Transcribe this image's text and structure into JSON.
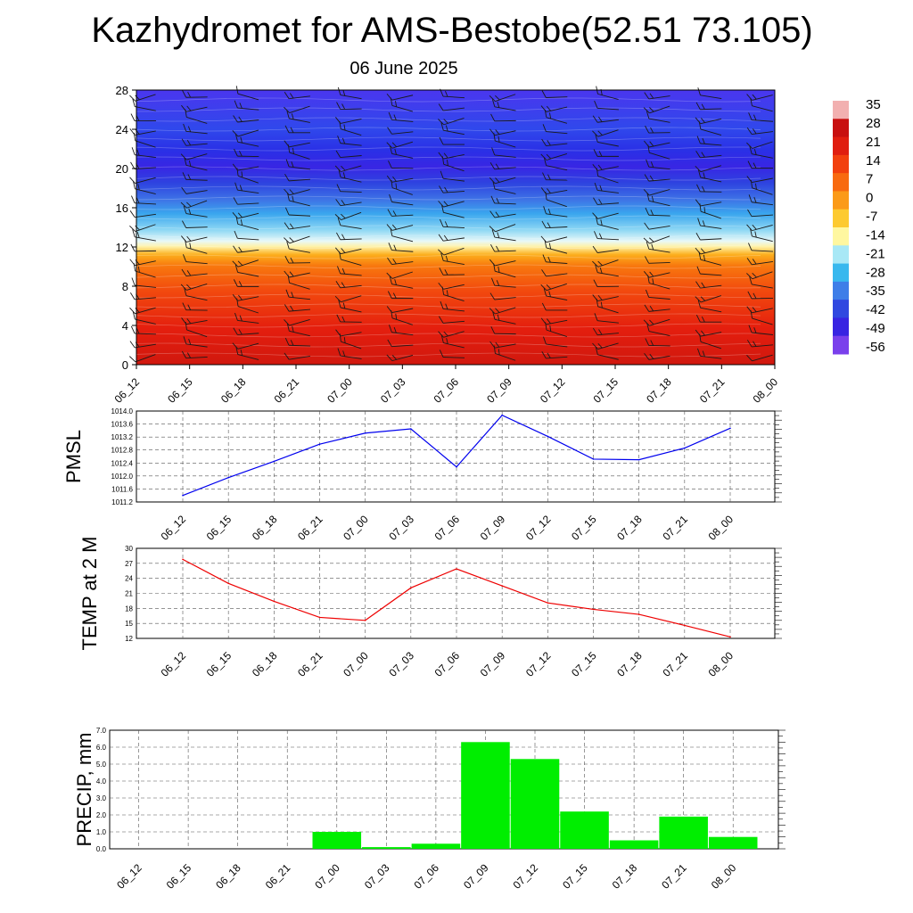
{
  "title": "Kazhydromet for AMS-Bestobe(52.51 73.105)",
  "subtitle": "06 June 2025",
  "chart_data": [
    {
      "type": "heatmap",
      "name": "temperature-cross-section",
      "x": [
        "06_12",
        "06_15",
        "06_18",
        "06_21",
        "07_00",
        "07_03",
        "07_06",
        "07_09",
        "07_12",
        "07_15",
        "07_18",
        "07_21",
        "08_00"
      ],
      "y_ticks": [
        0,
        4,
        8,
        12,
        16,
        20,
        24,
        28
      ],
      "ylim": [
        0,
        28
      ],
      "colorbar": {
        "labels": [
          "35",
          "28",
          "21",
          "14",
          "7",
          "0",
          "-7",
          "-14",
          "-21",
          "-28",
          "-35",
          "-42",
          "-49",
          "-56"
        ],
        "colors": [
          "#f2b0b0",
          "#c81010",
          "#e01e10",
          "#f2400e",
          "#f86a10",
          "#fb9a18",
          "#fdca30",
          "#fff7a0",
          "#a8e8f6",
          "#38b8ee",
          "#3e7ee8",
          "#3048e0",
          "#3824e2",
          "#7a40ec"
        ]
      },
      "wind_barbs": true
    },
    {
      "type": "line",
      "ylabel": "PMSL",
      "x": [
        "06_12",
        "06_15",
        "06_18",
        "06_21",
        "07_00",
        "07_03",
        "07_06",
        "07_09",
        "07_12",
        "07_15",
        "07_18",
        "07_21",
        "08_00"
      ],
      "values": [
        1011.4,
        1011.95,
        1012.45,
        1012.98,
        1013.32,
        1013.45,
        1012.28,
        1013.87,
        1013.22,
        1012.52,
        1012.5,
        1012.86,
        1013.47
      ],
      "ylim": [
        1011.2,
        1014.0
      ],
      "yticks": [
        "1011.2",
        "1011.6",
        "1012.0",
        "1012.4",
        "1012.8",
        "1013.2",
        "1013.6",
        "1014.0"
      ],
      "color": "#0000ee"
    },
    {
      "type": "line",
      "ylabel": "TEMP at 2 M",
      "x": [
        "06_12",
        "06_15",
        "06_18",
        "06_21",
        "07_00",
        "07_03",
        "07_06",
        "07_09",
        "07_12",
        "07_15",
        "07_18",
        "07_21",
        "08_00"
      ],
      "values": [
        27.8,
        23.0,
        19.4,
        16.2,
        15.6,
        22.1,
        25.9,
        22.5,
        19.1,
        17.8,
        16.8,
        14.6,
        12.3
      ],
      "ylim": [
        12,
        30
      ],
      "yticks": [
        "12",
        "15",
        "18",
        "21",
        "24",
        "27",
        "30"
      ],
      "color": "#ee0000"
    },
    {
      "type": "bar",
      "ylabel": "PRECIP, mm",
      "categories": [
        "06_12",
        "06_15",
        "06_18",
        "06_21",
        "07_00",
        "07_03",
        "07_06",
        "07_09",
        "07_12",
        "07_15",
        "07_18",
        "07_21",
        "08_00"
      ],
      "values": [
        0,
        0,
        0,
        0,
        1.0,
        0.1,
        0.3,
        6.3,
        5.3,
        2.2,
        0.5,
        1.9,
        0.7
      ],
      "ylim": [
        0,
        7.0
      ],
      "yticks": [
        "0.0",
        "1.0",
        "2.0",
        "3.0",
        "4.0",
        "5.0",
        "6.0",
        "7.0"
      ],
      "color": "#00ee00"
    }
  ]
}
